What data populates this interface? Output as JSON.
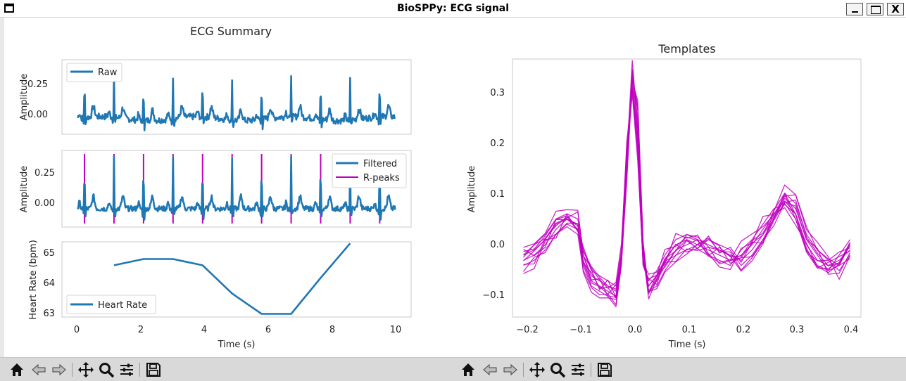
{
  "window": {
    "title": "BioSPPy: ECG signal",
    "buttons": [
      "minimize",
      "maximize",
      "close"
    ],
    "close_glyph": "X"
  },
  "summary": {
    "title": "ECG Summary",
    "raw_panel": {
      "ylabel": "Amplitude",
      "yticks": [
        "0.25",
        "0.00"
      ],
      "legend": [
        "Raw"
      ]
    },
    "filtered_panel": {
      "ylabel": "Amplitude",
      "yticks": [
        "0.25",
        "0.00"
      ],
      "legend": [
        "Filtered",
        "R-peaks"
      ]
    },
    "hr_panel": {
      "ylabel": "Heart Rate (bpm)",
      "yticks": [
        "65",
        "64",
        "63"
      ],
      "xticks": [
        "0",
        "2",
        "4",
        "6",
        "8",
        "10"
      ],
      "xlabel": "Time (s)",
      "legend": [
        "Heart Rate"
      ]
    }
  },
  "templates": {
    "title": "Templates",
    "ylabel": "Amplitude",
    "xlabel": "Time (s)",
    "yticks": [
      "0.3",
      "0.2",
      "0.1",
      "0.0",
      "−0.1"
    ],
    "xticks": [
      "−0.2",
      "−0.1",
      "0.0",
      "0.1",
      "0.2",
      "0.3",
      "0.4"
    ]
  },
  "toolbar_icons": [
    "home-icon",
    "back-icon",
    "forward-icon",
    "pan-icon",
    "zoom-icon",
    "configure-icon",
    "save-icon"
  ],
  "colors": {
    "series_blue": "#1f77b4",
    "peaks_magenta": "#bf00bf",
    "toolbar_bg": "#d9d9d9"
  },
  "chart_data": [
    {
      "type": "line",
      "title": "ECG Summary",
      "ylabel": "Amplitude",
      "xlim": [
        0,
        10
      ],
      "ylim": [
        -0.12,
        0.45
      ],
      "series": [
        {
          "name": "Raw",
          "r_peak_times": [
            0.21,
            1.14,
            2.07,
            3.0,
            3.93,
            4.86,
            5.79,
            6.72,
            7.65,
            8.58,
            9.51
          ]
        }
      ]
    },
    {
      "type": "line",
      "ylabel": "Amplitude",
      "xlim": [
        0,
        10
      ],
      "ylim": [
        -0.12,
        0.38
      ],
      "series": [
        {
          "name": "Filtered",
          "r_peak_times": [
            0.21,
            1.14,
            2.07,
            3.0,
            3.93,
            4.86,
            5.79,
            6.72,
            7.65,
            8.58,
            9.51
          ]
        },
        {
          "name": "R-peaks",
          "x": [
            0.21,
            1.14,
            2.07,
            3.0,
            3.93,
            4.86,
            5.79,
            6.72,
            7.65,
            8.58,
            9.51
          ]
        }
      ]
    },
    {
      "type": "line",
      "ylabel": "Heart Rate (bpm)",
      "xlabel": "Time (s)",
      "xlim": [
        -0.5,
        10.5
      ],
      "ylim": [
        62.85,
        65.25
      ],
      "series": [
        {
          "name": "Heart Rate",
          "x": [
            1.14,
            2.07,
            3.0,
            3.93,
            4.86,
            5.79,
            6.72,
            7.65,
            8.58
          ],
          "y": [
            64.5,
            64.7,
            64.7,
            64.5,
            63.6,
            62.95,
            62.95,
            64.1,
            65.2
          ]
        }
      ]
    },
    {
      "type": "line",
      "title": "Templates",
      "xlabel": "Time (s)",
      "ylabel": "Amplitude",
      "xlim": [
        -0.22,
        0.42
      ],
      "ylim": [
        -0.14,
        0.36
      ],
      "x": [
        -0.2,
        -0.18,
        -0.16,
        -0.14,
        -0.12,
        -0.1,
        -0.09,
        -0.075,
        -0.06,
        -0.045,
        -0.03,
        -0.02,
        -0.01,
        0.0,
        0.01,
        0.02,
        0.03,
        0.045,
        0.06,
        0.08,
        0.1,
        0.12,
        0.14,
        0.16,
        0.18,
        0.2,
        0.22,
        0.24,
        0.26,
        0.28,
        0.3,
        0.32,
        0.34,
        0.36,
        0.38,
        0.4
      ],
      "series": [
        {
          "values": [
            -0.02,
            -0.01,
            0.01,
            0.04,
            0.05,
            0.04,
            -0.02,
            -0.06,
            -0.07,
            -0.08,
            -0.09,
            -0.02,
            0.18,
            0.32,
            0.2,
            -0.03,
            -0.08,
            -0.06,
            -0.03,
            0.0,
            0.01,
            0.0,
            -0.01,
            -0.02,
            -0.03,
            -0.02,
            0.0,
            0.03,
            0.06,
            0.085,
            0.06,
            0.0,
            -0.03,
            -0.04,
            -0.03,
            -0.01
          ]
        },
        {
          "values": [
            -0.03,
            -0.02,
            0.0,
            0.03,
            0.05,
            0.03,
            -0.03,
            -0.07,
            -0.08,
            -0.09,
            -0.1,
            -0.03,
            0.16,
            0.34,
            0.24,
            -0.01,
            -0.09,
            -0.07,
            -0.04,
            -0.01,
            0.0,
            0.01,
            0.0,
            -0.01,
            -0.02,
            -0.03,
            -0.01,
            0.02,
            0.05,
            0.09,
            0.07,
            0.01,
            -0.02,
            -0.05,
            -0.04,
            0.0
          ]
        },
        {
          "values": [
            -0.02,
            0.0,
            0.02,
            0.05,
            0.06,
            0.05,
            -0.01,
            -0.05,
            -0.06,
            -0.07,
            -0.08,
            -0.01,
            0.2,
            0.3,
            0.18,
            -0.04,
            -0.07,
            -0.05,
            -0.02,
            0.01,
            0.02,
            0.01,
            -0.02,
            -0.03,
            -0.04,
            -0.01,
            0.01,
            0.04,
            0.07,
            0.08,
            0.05,
            -0.01,
            -0.04,
            -0.05,
            -0.02,
            0.01
          ]
        },
        {
          "values": [
            -0.04,
            -0.03,
            -0.01,
            0.02,
            0.04,
            0.03,
            -0.04,
            -0.08,
            -0.09,
            -0.1,
            -0.12,
            -0.04,
            0.14,
            0.33,
            0.26,
            0.0,
            -0.09,
            -0.08,
            -0.05,
            -0.02,
            -0.01,
            0.0,
            0.01,
            0.0,
            -0.01,
            -0.04,
            -0.02,
            0.01,
            0.05,
            0.1,
            0.08,
            0.02,
            -0.01,
            -0.03,
            -0.05,
            -0.02
          ]
        }
      ]
    }
  ]
}
